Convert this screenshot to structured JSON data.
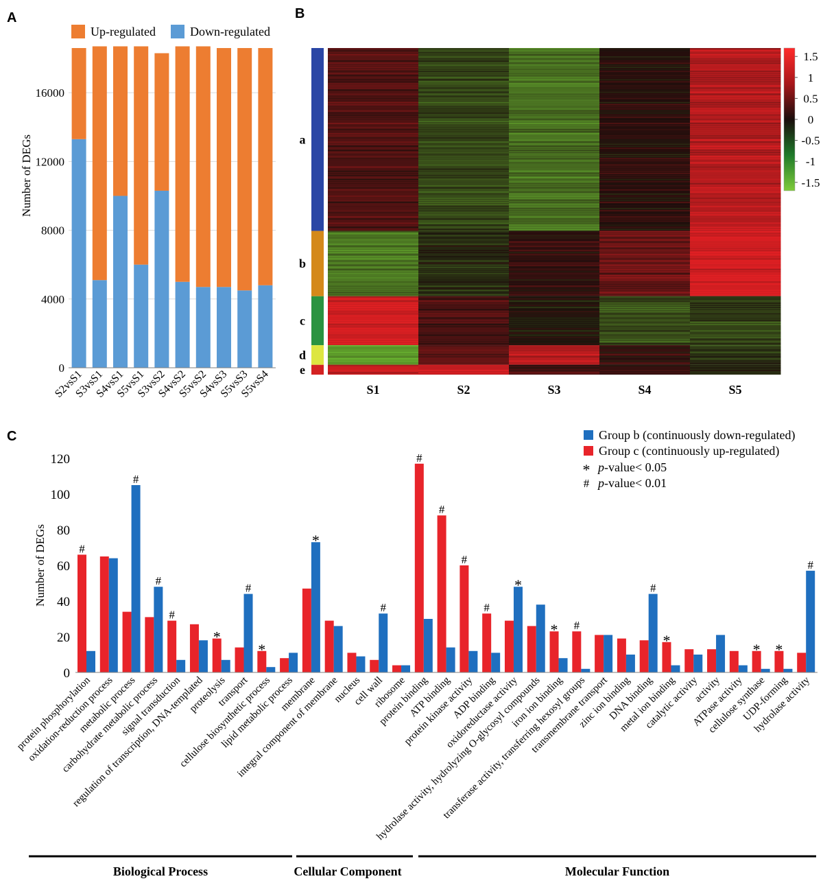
{
  "panel_labels": {
    "a": "A",
    "b": "B",
    "c": "C"
  },
  "colors": {
    "up": "#ED7D31",
    "down": "#5B9BD5",
    "group_b": "#1F6FBF",
    "group_c": "#E8242A",
    "axis": "#7f7f7f",
    "grid": "#d9d9d9",
    "cluster_a": "#2A46A5",
    "cluster_b": "#D4891A",
    "cluster_c": "#2A9340",
    "cluster_d": "#DDE640",
    "cluster_e": "#D42222"
  },
  "chart_data": [
    {
      "id": "A",
      "type": "bar",
      "stacked": true,
      "title": "",
      "xlabel": "",
      "ylabel": "Number of  DEGs",
      "ylim": [
        0,
        19000
      ],
      "yticks": [
        0,
        4000,
        8000,
        12000,
        16000
      ],
      "grid": true,
      "legend_position": "top",
      "categories": [
        "S2vsS1",
        "S3vsS1",
        "S4vsS1",
        "S5vsS1",
        "S3vsS2",
        "S4vsS2",
        "S5vsS2",
        "S4vsS3",
        "S5vsS3",
        "S5vsS4"
      ],
      "series": [
        {
          "name": "Down-regulated",
          "values": [
            13300,
            5100,
            10000,
            6000,
            10300,
            5000,
            4700,
            4700,
            4500,
            4800
          ]
        },
        {
          "name": "Up-regulated",
          "values": [
            5300,
            13600,
            8700,
            12700,
            8000,
            13700,
            14000,
            13900,
            14100,
            13800
          ]
        }
      ]
    },
    {
      "id": "B",
      "type": "heatmap",
      "title": "",
      "columns": [
        "S1",
        "S2",
        "S3",
        "S4",
        "S5"
      ],
      "clusters": [
        {
          "label": "a",
          "fraction": 0.56,
          "values": [
            0.45,
            -0.55,
            -0.95,
            0.1,
            1.3
          ]
        },
        {
          "label": "b",
          "fraction": 0.2,
          "values": [
            -1.0,
            -0.25,
            0.2,
            0.65,
            1.55
          ]
        },
        {
          "label": "c",
          "fraction": 0.15,
          "values": [
            1.5,
            0.4,
            -0.1,
            -0.6,
            -0.5
          ]
        },
        {
          "label": "d",
          "fraction": 0.06,
          "values": [
            -1.3,
            0.6,
            1.3,
            0.25,
            -0.35
          ]
        },
        {
          "label": "e",
          "fraction": 0.03,
          "values": [
            1.5,
            1.4,
            0.4,
            0.2,
            -0.3
          ]
        }
      ],
      "colorbar": {
        "min": -1.7,
        "max": 1.7,
        "ticks": [
          "1.5",
          "1",
          "0.5",
          "0",
          "-0.5",
          "-1",
          "-1.5"
        ]
      }
    },
    {
      "id": "C",
      "type": "bar",
      "title": "",
      "xlabel": "",
      "ylabel": "Number of  DEGs",
      "ylim": [
        0,
        120
      ],
      "yticks": [
        0,
        20,
        40,
        60,
        80,
        100,
        120
      ],
      "grid": false,
      "legend_position": "top-right",
      "categories": [
        "protein phosphorylation",
        "oxidation-reduction process",
        "metabolic process",
        "carbohydrate metabolic process",
        "signal transduction",
        "regulation of transcription, DNA-templated",
        "proteolysis",
        "transport",
        "cellulose biosynthetic process",
        "lipid metabolic process",
        "membrane",
        "integral component of membrane",
        "nucleus",
        "cell wall",
        "ribosome",
        "protein binding",
        "ATP binding",
        "protein kinase activity",
        "ADP binding",
        "oxidoreductase activity",
        "hydrolase activity, hydrolyzing O-glycosyl compounds",
        "iron ion binding",
        "transferase activity, transferring hexosyl groups",
        "transmembrane transport",
        "zinc ion binding",
        "DNA binding",
        "metal ion binding",
        "catalytic activity",
        "activity",
        "ATPase activity",
        "cellulose synthase",
        "UDP-forming",
        "hydrolase activity"
      ],
      "series": [
        {
          "name": "Group c (continuously up-regulated)",
          "values": [
            66,
            65,
            34,
            31,
            29,
            27,
            19,
            14,
            12,
            8,
            47,
            29,
            11,
            7,
            4,
            117,
            88,
            60,
            33,
            29,
            26,
            23,
            23,
            21,
            19,
            18,
            17,
            13,
            13,
            12,
            12,
            12,
            11
          ]
        },
        {
          "name": "Group b (continuously down-regulated)",
          "values": [
            12,
            64,
            105,
            48,
            7,
            18,
            7,
            44,
            3,
            11,
            73,
            26,
            9,
            33,
            4,
            30,
            14,
            12,
            11,
            48,
            38,
            8,
            2,
            21,
            10,
            44,
            4,
            10,
            21,
            4,
            2,
            2,
            57
          ]
        }
      ],
      "annotations": [
        {
          "index": 0,
          "series": "Group c (continuously up-regulated)",
          "mark": "#"
        },
        {
          "index": 2,
          "series": "Group b (continuously down-regulated)",
          "mark": "#"
        },
        {
          "index": 3,
          "series": "Group b (continuously down-regulated)",
          "mark": "#"
        },
        {
          "index": 4,
          "series": "Group c (continuously up-regulated)",
          "mark": "#"
        },
        {
          "index": 6,
          "series": "Group c (continuously up-regulated)",
          "mark": "*"
        },
        {
          "index": 7,
          "series": "Group b (continuously down-regulated)",
          "mark": "#"
        },
        {
          "index": 8,
          "series": "Group c (continuously up-regulated)",
          "mark": "*"
        },
        {
          "index": 10,
          "series": "Group b (continuously down-regulated)",
          "mark": "*"
        },
        {
          "index": 13,
          "series": "Group b (continuously down-regulated)",
          "mark": "#"
        },
        {
          "index": 15,
          "series": "Group c (continuously up-regulated)",
          "mark": "#"
        },
        {
          "index": 16,
          "series": "Group c (continuously up-regulated)",
          "mark": "#"
        },
        {
          "index": 17,
          "series": "Group c (continuously up-regulated)",
          "mark": "#"
        },
        {
          "index": 18,
          "series": "Group c (continuously up-regulated)",
          "mark": "#"
        },
        {
          "index": 19,
          "series": "Group b (continuously down-regulated)",
          "mark": "*"
        },
        {
          "index": 21,
          "series": "Group c (continuously up-regulated)",
          "mark": "*"
        },
        {
          "index": 22,
          "series": "Group c (continuously up-regulated)",
          "mark": "#"
        },
        {
          "index": 25,
          "series": "Group b (continuously down-regulated)",
          "mark": "#"
        },
        {
          "index": 26,
          "series": "Group c (continuously up-regulated)",
          "mark": "*"
        },
        {
          "index": 30,
          "series": "Group c (continuously up-regulated)",
          "mark": "*"
        },
        {
          "index": 31,
          "series": "Group c (continuously up-regulated)",
          "mark": "*"
        },
        {
          "index": 32,
          "series": "Group b (continuously down-regulated)",
          "mark": "#"
        }
      ],
      "significance_legend": [
        {
          "symbol": "*",
          "italic": "p",
          "text": "-value< 0.05"
        },
        {
          "symbol": "#",
          "italic": "p",
          "text": "-value< 0.01"
        }
      ],
      "groups": [
        {
          "name": "Biological Process",
          "from": 0,
          "to": 9
        },
        {
          "name": "Cellular Component",
          "from": 10,
          "to": 14
        },
        {
          "name": "Molecular Function",
          "from": 15,
          "to": 32
        }
      ]
    }
  ]
}
